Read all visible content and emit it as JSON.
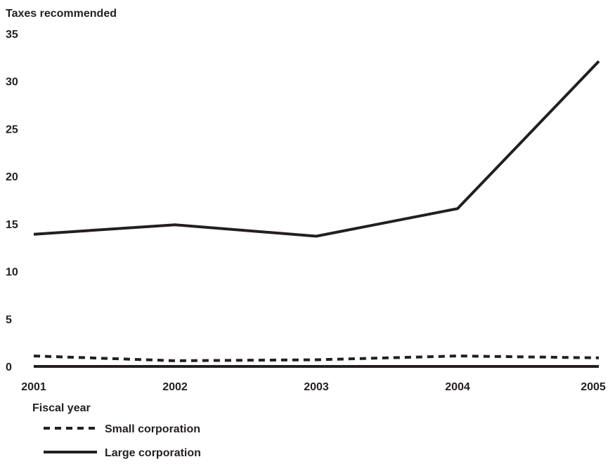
{
  "chart_data": {
    "type": "line",
    "ylabel": "Taxes recommended",
    "xlabel": "Fiscal year",
    "x": [
      "2001",
      "2002",
      "2003",
      "2004",
      "2005"
    ],
    "ylim": [
      0,
      35
    ],
    "yticks": [
      0,
      5,
      10,
      15,
      20,
      25,
      30,
      35
    ],
    "grid": false,
    "legend_position": "bottom-left",
    "series": [
      {
        "name": "Small corporation",
        "style": "dashed",
        "color": "#231f20",
        "values": [
          1.1,
          0.6,
          0.7,
          1.1,
          0.9
        ]
      },
      {
        "name": "Large corporation",
        "style": "solid",
        "color": "#231f20",
        "values": [
          13.9,
          14.9,
          13.7,
          16.6,
          32.1
        ]
      }
    ]
  }
}
